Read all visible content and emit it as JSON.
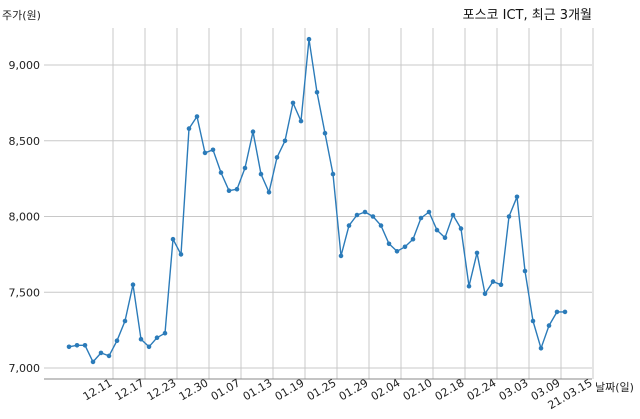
{
  "chart_data": {
    "type": "line",
    "title": "포스코 ICT, 최근 3개월",
    "ylabel": "주가(원)",
    "xlabel": "날짜(일)",
    "ylim": [
      7000,
      9400
    ],
    "yticks": [
      7000,
      7500,
      8000,
      8500,
      9000
    ],
    "ytick_labels": [
      "7,000",
      "7,500",
      "8,000",
      "8,500",
      "9,000"
    ],
    "grid": true,
    "line_color": "#2b7bb9",
    "xtick_labels": [
      "12.11",
      "12.17",
      "12.23",
      "12.30",
      "01.07",
      "01.13",
      "01.19",
      "01.25",
      "01.29",
      "02.04",
      "02.10",
      "02.18",
      "02.24",
      "03.03",
      "03.09",
      "21.03.15"
    ],
    "xtick_positions": [
      3,
      7,
      11,
      15,
      19,
      23,
      27,
      31,
      35,
      39,
      43,
      47,
      51,
      55,
      59,
      63
    ],
    "series": [
      {
        "values": [
          7140,
          7150,
          7150,
          7040,
          7100,
          7080,
          7180,
          7310,
          7550,
          7190,
          7140,
          7200,
          7230,
          7850,
          7750,
          8580,
          8660,
          8420,
          8440,
          8290,
          8170,
          8180,
          8320,
          8560,
          8280,
          8160,
          8390,
          8500,
          8750,
          8630,
          9170,
          8820,
          8550,
          8280,
          7740,
          7940,
          8010,
          8030,
          8000,
          7940,
          7820,
          7770,
          7800,
          7850,
          7990,
          8030,
          7910,
          7860,
          8010,
          7920,
          7540,
          7760,
          7490,
          7570,
          7550,
          8000,
          8130,
          7640,
          7310,
          7130,
          7280,
          7370,
          7370
        ]
      }
    ]
  }
}
